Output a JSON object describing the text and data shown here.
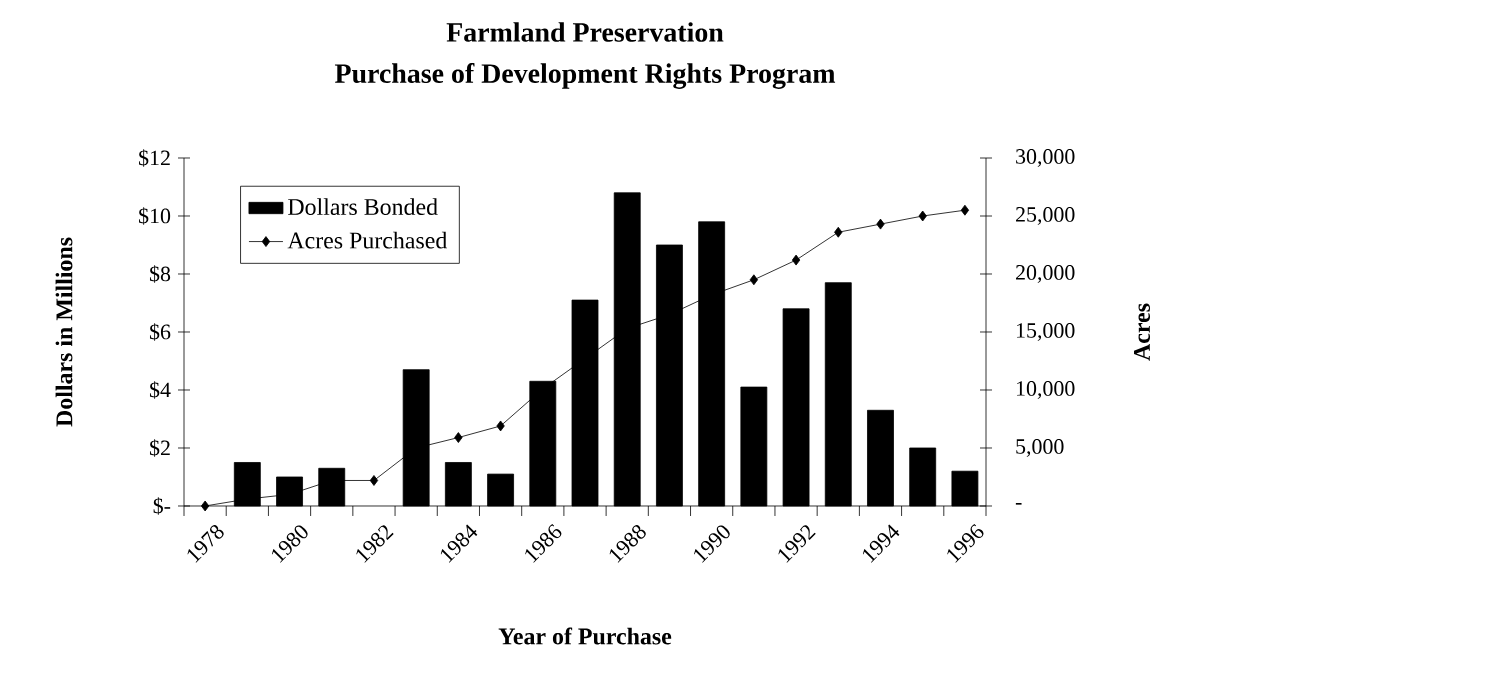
{
  "chart_data": {
    "type": "bar",
    "title": "Farmland Preservation",
    "subtitle": "Purchase of Development Rights Program",
    "xlabel": "Year of Purchase",
    "ylabel": "Dollars in Millions",
    "y2label": "Acres",
    "categories": [
      "1978",
      null,
      "1980",
      null,
      "1982",
      null,
      "1984",
      null,
      "1986",
      null,
      "1988",
      null,
      "1990",
      null,
      "1992",
      null,
      "1994",
      null,
      "1996"
    ],
    "series": [
      {
        "name": "Dollars Bonded",
        "color": "#000000",
        "values": [
          null,
          1.5,
          1.0,
          1.3,
          null,
          4.7,
          1.5,
          1.1,
          4.3,
          7.1,
          10.8,
          9.0,
          9.8,
          4.1,
          6.8,
          7.7,
          3.3,
          2.0,
          1.2
        ]
      },
      {
        "name": "Acres Purchased",
        "type": "line",
        "axis": "y2",
        "color": "#000000",
        "values": [
          0,
          600,
          1000,
          2200,
          2200,
          5000,
          5900,
          6900,
          10100,
          12700,
          15300,
          16500,
          18200,
          19500,
          21200,
          23600,
          24300,
          25000,
          25500
        ]
      }
    ],
    "ylim": [
      0,
      12
    ],
    "yticks": [
      {
        "value": 0,
        "label": "$-"
      },
      {
        "value": 2,
        "label": "$2"
      },
      {
        "value": 4,
        "label": "$4"
      },
      {
        "value": 6,
        "label": "$6"
      },
      {
        "value": 8,
        "label": "$8"
      },
      {
        "value": 10,
        "label": "$10"
      },
      {
        "value": 12,
        "label": "$12"
      }
    ],
    "y2lim": [
      0,
      30000
    ],
    "y2ticks": [
      {
        "value": 0,
        "label": "-"
      },
      {
        "value": 5000,
        "label": "5,000"
      },
      {
        "value": 10000,
        "label": "10,000"
      },
      {
        "value": 15000,
        "label": "15,000"
      },
      {
        "value": 20000,
        "label": "20,000"
      },
      {
        "value": 25000,
        "label": "25,000"
      },
      {
        "value": 30000,
        "label": "30,000"
      }
    ],
    "legend": "top left",
    "marker": "diamond",
    "line_style": "solid"
  }
}
